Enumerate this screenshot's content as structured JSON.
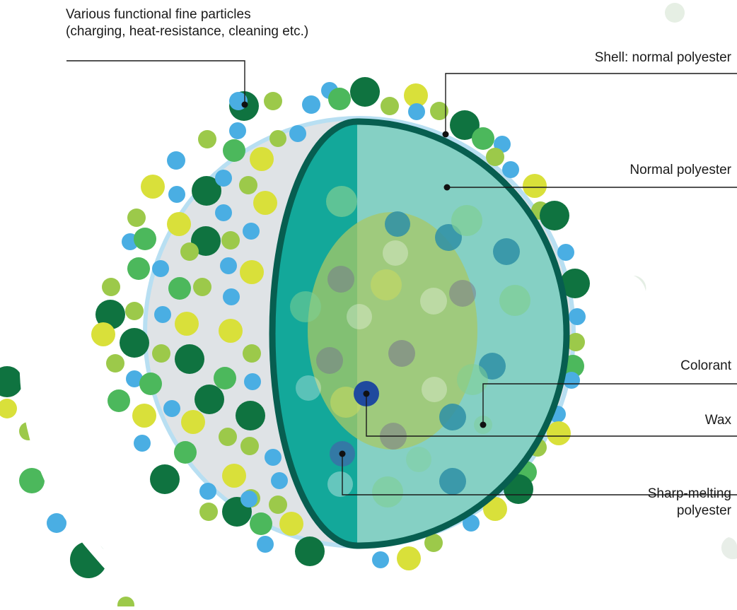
{
  "labels": {
    "particles_line1": "Various functional fine particles",
    "particles_line2": "(charging, heat-resistance, cleaning etc.)",
    "shell": "Shell: normal polyester",
    "normal": "Normal polyester",
    "colorant": "Colorant",
    "wax": "Wax",
    "sharp_line1": "Sharp-melting",
    "sharp_line2": "polyester"
  },
  "colors": {
    "dark_green": "#0f7340",
    "mid_green": "#4cb85c",
    "light_green": "#9cc94a",
    "yellow": "#d9e03a",
    "blue": "#4aaee3",
    "shell_outline": "#075e50",
    "core_left": "#13a89a",
    "core_right": "#85d0c4",
    "wax_blob": "#a8c866",
    "colorant": "#1f4a9e",
    "outer_gray": "#dfe3e6",
    "outer_ring": "#b8dff2"
  }
}
